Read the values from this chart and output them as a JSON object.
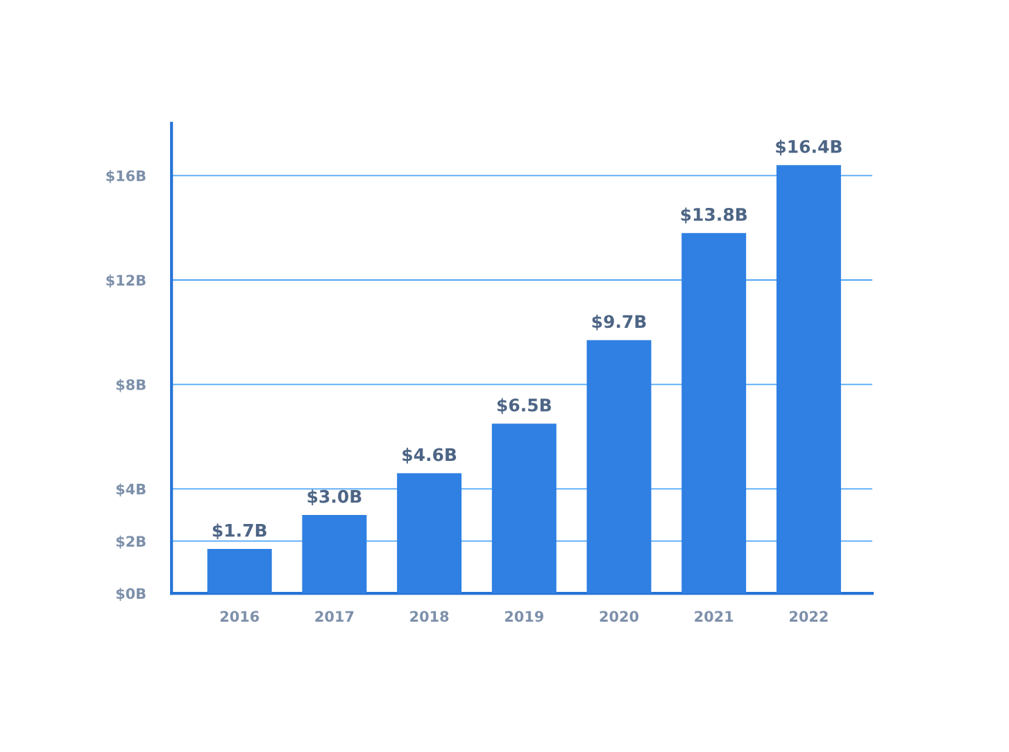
{
  "chart_data": {
    "type": "bar",
    "categories": [
      "2016",
      "2017",
      "2018",
      "2019",
      "2020",
      "2021",
      "2022"
    ],
    "values": [
      1.7,
      3.0,
      4.6,
      6.5,
      9.7,
      13.8,
      16.4
    ],
    "value_labels": [
      "$1.7B",
      "$3.0B",
      "$4.6B",
      "$6.5B",
      "$9.7B",
      "$13.8B",
      "$16.4B"
    ],
    "color": "#2f80e2",
    "ylim": [
      0,
      18
    ],
    "yticks": [
      {
        "value": 0,
        "label": "$0B"
      },
      {
        "value": 2,
        "label": "$2B"
      },
      {
        "value": 4,
        "label": "$4B"
      },
      {
        "value": 8,
        "label": "$8B"
      },
      {
        "value": 12,
        "label": "$12B"
      },
      {
        "value": 16,
        "label": "$16B"
      }
    ],
    "grid": "y"
  }
}
